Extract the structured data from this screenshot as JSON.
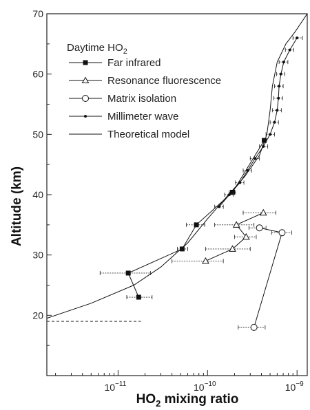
{
  "chart_data": {
    "type": "line",
    "xlabel_pre": "HO",
    "xlabel_sub": "2",
    "xlabel_post": " mixing ratio",
    "ylabel": "Altitude (km)",
    "xscale": "log",
    "xlim": [
      1.6e-12,
      1.3e-09
    ],
    "ylim": [
      10,
      70
    ],
    "y_ticks": [
      20,
      30,
      40,
      50,
      60,
      70
    ],
    "x_ticks": [
      {
        "value": 1e-11,
        "base": "10",
        "exp": "−11"
      },
      {
        "value": 1e-10,
        "base": "10",
        "exp": "−10"
      },
      {
        "value": 1e-09,
        "base": "10",
        "exp": "−9"
      }
    ],
    "legend": {
      "title_pre": "Daytime HO",
      "title_sub": "2",
      "placement": "top-left",
      "entries": [
        {
          "label": "Far infrared",
          "marker": "square"
        },
        {
          "label": "Resonance fluorescence",
          "marker": "triangle"
        },
        {
          "label": "Matrix isolation",
          "marker": "circle"
        },
        {
          "label": "Millimeter wave",
          "marker": "dot"
        },
        {
          "label": "Theoretical model",
          "marker": "none"
        }
      ]
    },
    "series": [
      {
        "marker": "square",
        "points": [
          {
            "x": 4.3e-10,
            "y": 49,
            "xerr": [
              4.1e-10,
              4.5e-10
            ]
          },
          {
            "x": 1.9e-10,
            "y": 40.4,
            "xerr": [
              1.75e-10,
              2.05e-10
            ]
          },
          {
            "x": 7.5e-11,
            "y": 35,
            "xerr": [
              5.8e-11,
              9.3e-11
            ]
          },
          {
            "x": 5.2e-11,
            "y": 31,
            "xerr": [
              4.6e-11,
              6e-11
            ]
          },
          {
            "x": 1.3e-11,
            "y": 27,
            "xerr": [
              6.3e-12,
              2.3e-11
            ]
          },
          {
            "x": 1.7e-11,
            "y": 23,
            "xerr": [
              1.25e-11,
              2.4e-11
            ]
          }
        ]
      },
      {
        "marker": "triangle",
        "points": [
          {
            "x": 4.2e-10,
            "y": 37,
            "xerr": [
              2.5e-10,
              5.8e-10
            ]
          },
          {
            "x": 2.1e-10,
            "y": 35,
            "xerr": [
              1.2e-10,
              3.3e-10
            ]
          },
          {
            "x": 2.7e-10,
            "y": 33,
            "xerr": [
              2e-10,
              3.5e-10
            ]
          },
          {
            "x": 1.9e-10,
            "y": 31,
            "xerr": [
              9.5e-11,
              3e-10
            ]
          },
          {
            "x": 9.5e-11,
            "y": 29,
            "xerr": [
              4e-11,
              1.5e-10
            ]
          }
        ]
      },
      {
        "marker": "circle",
        "points": [
          {
            "x": 3.8e-10,
            "y": 34.5,
            "xerr": [
              2.9e-10,
              4.5e-10
            ]
          },
          {
            "x": 6.8e-10,
            "y": 33.7,
            "xerr": [
              5.2e-10,
              8.7e-10
            ]
          },
          {
            "x": 3.3e-10,
            "y": 18,
            "xerr": [
              2.2e-10,
              4.4e-10
            ]
          }
        ]
      },
      {
        "marker": "dot",
        "points": [
          {
            "x": 1e-09,
            "y": 66,
            "xerr": [
              9e-10,
              1.15e-09
            ]
          },
          {
            "x": 8.3e-10,
            "y": 64,
            "xerr": [
              7.4e-10,
              9.2e-10
            ]
          },
          {
            "x": 7.1e-10,
            "y": 62,
            "xerr": [
              6.3e-10,
              7.9e-10
            ]
          },
          {
            "x": 6.6e-10,
            "y": 60,
            "xerr": [
              5.9e-10,
              7.3e-10
            ]
          },
          {
            "x": 6.3e-10,
            "y": 58,
            "xerr": [
              5.6e-10,
              7e-10
            ]
          },
          {
            "x": 6.2e-10,
            "y": 56,
            "xerr": [
              5.5e-10,
              6.9e-10
            ]
          },
          {
            "x": 6e-10,
            "y": 54,
            "xerr": [
              5.3e-10,
              6.7e-10
            ]
          },
          {
            "x": 5.6e-10,
            "y": 52,
            "xerr": [
              5e-10,
              6.2e-10
            ]
          },
          {
            "x": 5e-10,
            "y": 50,
            "xerr": [
              4.5e-10,
              5.6e-10
            ]
          },
          {
            "x": 4.2e-10,
            "y": 48,
            "xerr": [
              3.8e-10,
              4.7e-10
            ]
          },
          {
            "x": 3.4e-10,
            "y": 46,
            "xerr": [
              3e-10,
              3.8e-10
            ]
          },
          {
            "x": 2.8e-10,
            "y": 44,
            "xerr": [
              2.5e-10,
              3.1e-10
            ]
          },
          {
            "x": 2.3e-10,
            "y": 42,
            "xerr": [
              2.05e-10,
              2.55e-10
            ]
          },
          {
            "x": 1.75e-10,
            "y": 40,
            "xerr": [
              1.55e-10,
              1.95e-10
            ]
          },
          {
            "x": 1.35e-10,
            "y": 38,
            "xerr": [
              1.2e-10,
              1.5e-10
            ]
          }
        ]
      },
      {
        "marker": "none",
        "points": [
          {
            "x": 1.6e-12,
            "y": 19.5
          },
          {
            "x": 5e-12,
            "y": 22
          },
          {
            "x": 1.5e-11,
            "y": 25
          },
          {
            "x": 3e-11,
            "y": 28
          },
          {
            "x": 6e-11,
            "y": 32
          },
          {
            "x": 1e-10,
            "y": 36
          },
          {
            "x": 1.6e-10,
            "y": 39.5
          },
          {
            "x": 2.6e-10,
            "y": 43
          },
          {
            "x": 3.8e-10,
            "y": 46.5
          },
          {
            "x": 4.6e-10,
            "y": 50
          },
          {
            "x": 5e-10,
            "y": 54
          },
          {
            "x": 5.3e-10,
            "y": 58
          },
          {
            "x": 6e-10,
            "y": 62
          },
          {
            "x": 7.5e-10,
            "y": 65
          },
          {
            "x": 9.5e-10,
            "y": 67
          },
          {
            "x": 1.3e-09,
            "y": 70
          }
        ]
      }
    ],
    "reference_line": {
      "y": 19,
      "x_start": 1.6e-12,
      "x_end": 1.8e-11,
      "style": "dashed"
    }
  }
}
